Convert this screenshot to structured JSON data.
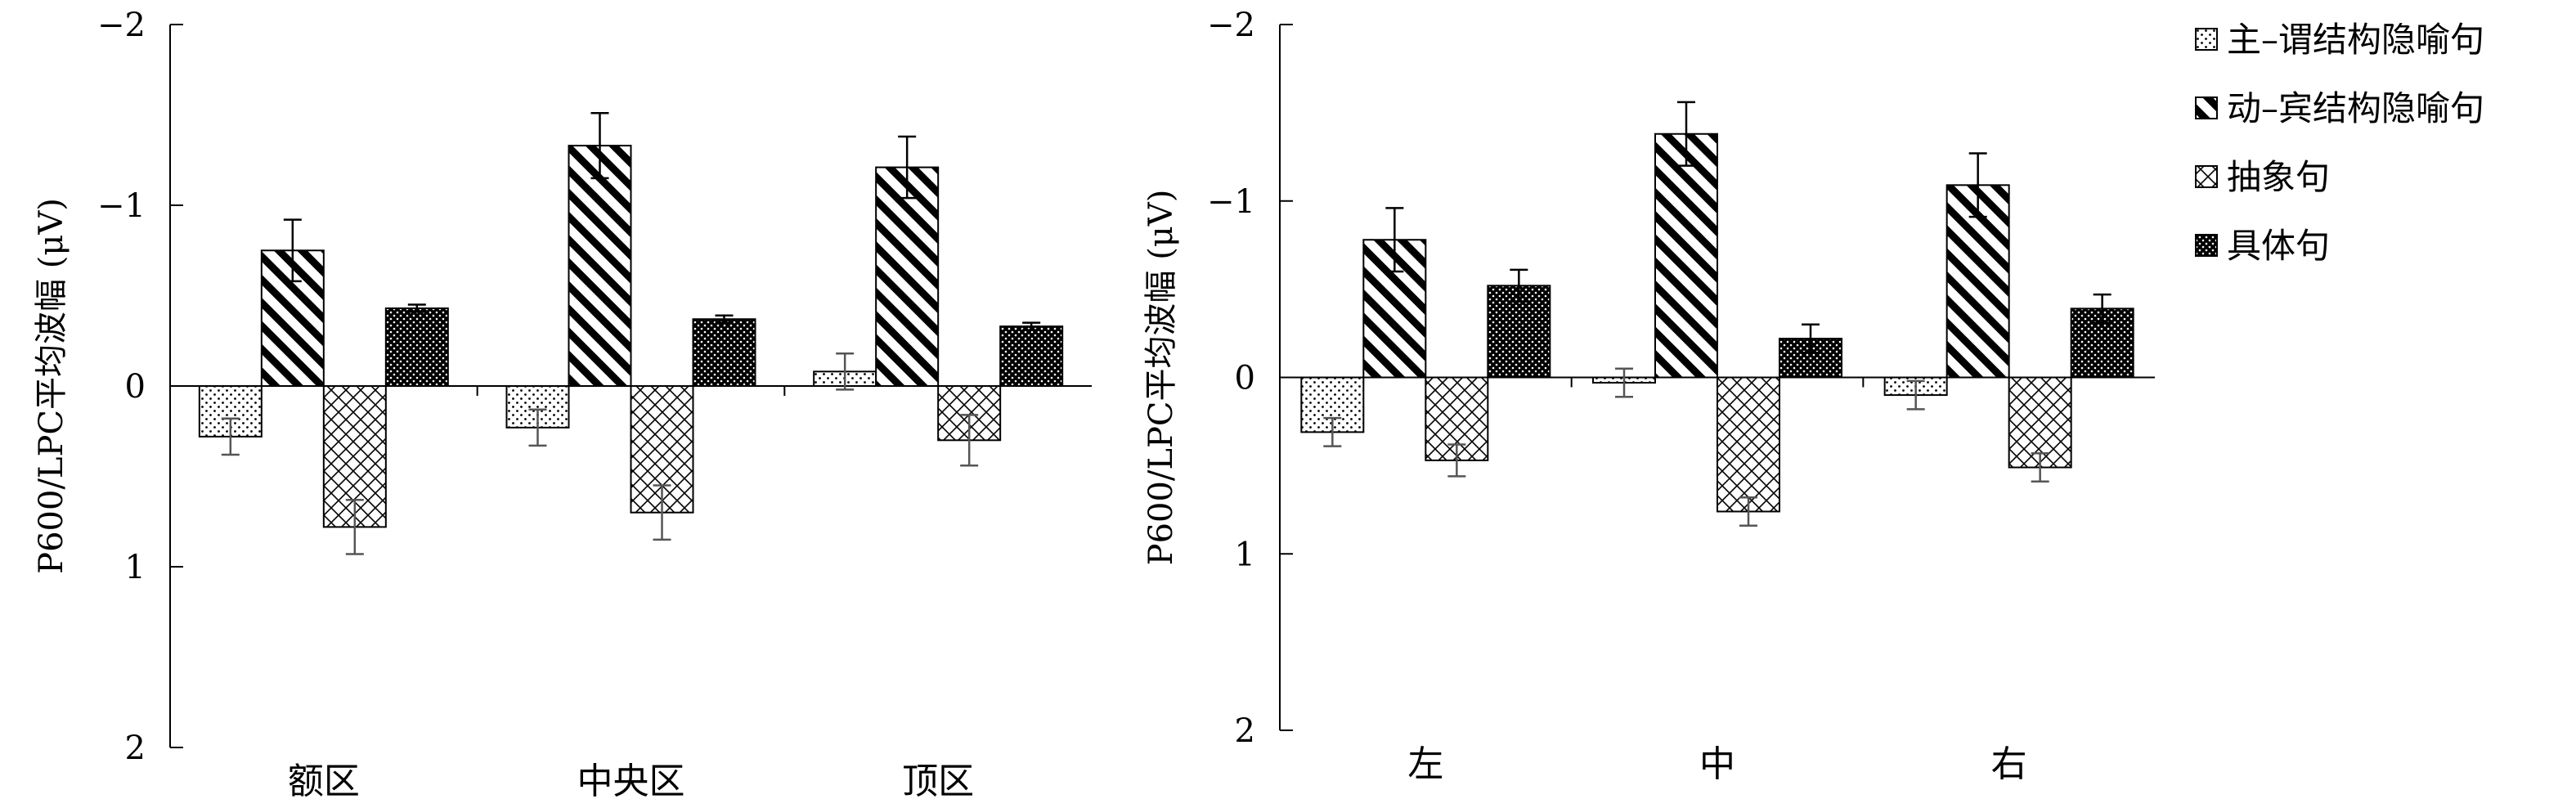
{
  "chart_data": {
    "type": "bar",
    "legend": {
      "placement": "top-right",
      "entries": [
        {
          "label": "主–谓结构隐喻句",
          "pattern": "dots"
        },
        {
          "label": "动–宾结构隐喻句",
          "pattern": "diagonal"
        },
        {
          "label": "抽象句",
          "pattern": "crosshatch"
        },
        {
          "label": "具体句",
          "pattern": "dense"
        }
      ]
    },
    "panels": [
      {
        "ylabel": "P600/LPC平均波幅 (μV)",
        "yticks": [
          "−2",
          "−1",
          "0",
          "1",
          "2"
        ],
        "ylim": [
          -2,
          2
        ],
        "y_inverted": true,
        "categories": [
          "额区",
          "中央区",
          "顶区"
        ],
        "series": [
          {
            "name": "主–谓结构隐喻句",
            "values": [
              0.28,
              0.23,
              -0.08
            ],
            "errors": [
              0.1,
              0.1,
              0.1
            ]
          },
          {
            "name": "动–宾结构隐喻句",
            "values": [
              -0.75,
              -1.33,
              -1.21
            ],
            "errors": [
              0.17,
              0.18,
              0.17
            ]
          },
          {
            "name": "抽象句",
            "values": [
              0.78,
              0.7,
              0.3
            ],
            "errors": [
              0.15,
              0.15,
              0.14
            ]
          },
          {
            "name": "具体句",
            "values": [
              -0.43,
              -0.37,
              -0.33
            ],
            "errors": [
              0.02,
              0.02,
              0.02
            ]
          }
        ]
      },
      {
        "ylabel": "P600/LPC平均波幅 (μV)",
        "yticks": [
          "−2",
          "−1",
          "0",
          "1",
          "2"
        ],
        "ylim": [
          -2,
          2
        ],
        "y_inverted": true,
        "categories": [
          "左",
          "中",
          "右"
        ],
        "series": [
          {
            "name": "主–谓结构隐喻句",
            "values": [
              0.31,
              0.03,
              0.1
            ],
            "errors": [
              0.08,
              0.08,
              0.08
            ]
          },
          {
            "name": "动–宾结构隐喻句",
            "values": [
              -0.78,
              -1.38,
              -1.09
            ],
            "errors": [
              0.18,
              0.18,
              0.18
            ]
          },
          {
            "name": "抽象句",
            "values": [
              0.47,
              0.76,
              0.51
            ],
            "errors": [
              0.09,
              0.08,
              0.08
            ]
          },
          {
            "name": "具体句",
            "values": [
              -0.52,
              -0.22,
              -0.39
            ],
            "errors": [
              0.09,
              0.08,
              0.08
            ]
          }
        ]
      }
    ]
  }
}
